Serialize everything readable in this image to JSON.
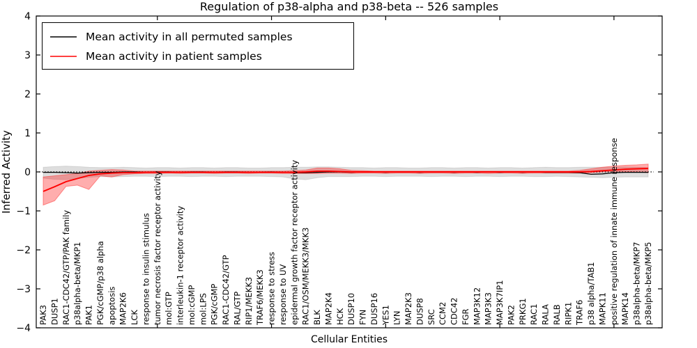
{
  "chart_data": {
    "type": "line",
    "title": "Regulation of p38-alpha and p38-beta -- 526 samples",
    "xlabel": "Cellular Entities",
    "ylabel": "Inferred Activity",
    "ylim": [
      -4,
      4
    ],
    "yticks": [
      4,
      3,
      2,
      1,
      0,
      -1,
      -2,
      -3,
      -4
    ],
    "xtick_positions": [
      10,
      20,
      30,
      40,
      50
    ],
    "grid": false,
    "legend_position": "upper left",
    "zero_reference_line": 0,
    "categories": [
      "PAK3",
      "DUSP1",
      "RAC1-CDC42/GTP/PAK family",
      "p38alpha-beta/MKP1",
      "PAK1",
      "PGK/cGMP/p38 alpha",
      "apoptosis",
      "MAP2K6",
      "LCK",
      "response to insulin stimulus",
      "tumor necrosis factor receptor activity",
      "mol:GTP",
      "interleukin-1 receptor activity",
      "mol:cGMP",
      "mol:LPS",
      "PGK/cGMP",
      "RAC1-CDC42/GTP",
      "RAL/GTP",
      "RIP1/MEKK3",
      "TRAF6/MEKK3",
      "response to stress",
      "response to UV",
      "epidermal growth factor receptor activity",
      "RAC1/OSM/MEKK3/MKK3",
      "BLK",
      "MAP2K4",
      "HCK",
      "DUSP10",
      "FYN",
      "DUSP16",
      "YES1",
      "LYN",
      "MAP2K3",
      "DUSP8",
      "SRC",
      "CCM2",
      "CDC42",
      "FGR",
      "MAP3K12",
      "MAP3K3",
      "MAP3K7IP1",
      "PAK2",
      "PRKG1",
      "RAC1",
      "RALA",
      "RALB",
      "RIPK1",
      "TRAF6",
      "p38 alpha/TAB1",
      "MAPK11",
      "positive regulation of innate immune response",
      "MAPK14",
      "p38alpha-beta/MKP7",
      "p38alpha-beta/MKP5"
    ],
    "series": [
      {
        "name": "Mean activity in all permuted samples",
        "color": "#000000",
        "band_fill": "rgba(0,0,0,0.13)",
        "band_edge": "rgba(0,0,0,0.10)",
        "values": [
          -0.01,
          -0.01,
          -0.02,
          -0.03,
          -0.02,
          -0.01,
          -0.01,
          0,
          0,
          -0.01,
          0,
          0,
          -0.01,
          0,
          0,
          -0.01,
          0,
          0,
          -0.01,
          -0.01,
          0,
          -0.01,
          -0.02,
          -0.02,
          -0.01,
          0,
          0,
          -0.01,
          0,
          0,
          -0.01,
          0,
          0,
          -0.01,
          0,
          0,
          -0.01,
          0,
          -0.01,
          0,
          -0.01,
          0,
          -0.01,
          0,
          -0.01,
          -0.01,
          -0.01,
          -0.02,
          -0.06,
          -0.05,
          -0.02,
          -0.01,
          -0.01,
          -0.01
        ],
        "band_upper": [
          0.12,
          0.14,
          0.15,
          0.14,
          0.12,
          0.11,
          0.11,
          0.12,
          0.11,
          0.1,
          0.11,
          0.11,
          0.1,
          0.11,
          0.11,
          0.1,
          0.11,
          0.11,
          0.1,
          0.1,
          0.11,
          0.11,
          0.12,
          0.12,
          0.13,
          0.13,
          0.12,
          0.11,
          0.11,
          0.1,
          0.11,
          0.11,
          0.1,
          0.1,
          0.11,
          0.11,
          0.1,
          0.11,
          0.11,
          0.1,
          0.11,
          0.11,
          0.1,
          0.11,
          0.12,
          0.11,
          0.11,
          0.12,
          0.12,
          0.12,
          0.12,
          0.13,
          0.12,
          0.11
        ],
        "band_lower": [
          -0.16,
          -0.19,
          -0.2,
          -0.17,
          -0.14,
          -0.12,
          -0.13,
          -0.12,
          -0.11,
          -0.11,
          -0.12,
          -0.11,
          -0.11,
          -0.12,
          -0.11,
          -0.11,
          -0.12,
          -0.11,
          -0.11,
          -0.11,
          -0.12,
          -0.13,
          -0.18,
          -0.2,
          -0.15,
          -0.12,
          -0.12,
          -0.12,
          -0.11,
          -0.11,
          -0.12,
          -0.11,
          -0.11,
          -0.11,
          -0.12,
          -0.11,
          -0.11,
          -0.12,
          -0.11,
          -0.11,
          -0.12,
          -0.11,
          -0.11,
          -0.12,
          -0.12,
          -0.11,
          -0.12,
          -0.13,
          -0.14,
          -0.15,
          -0.14,
          -0.13,
          -0.13,
          -0.13
        ]
      },
      {
        "name": "Mean activity in patient samples",
        "color": "#ff0000",
        "band_fill": "rgba(255,0,0,0.32)",
        "band_edge": "rgba(255,60,60,0.55)",
        "values": [
          -0.5,
          -0.38,
          -0.25,
          -0.17,
          -0.09,
          -0.05,
          -0.03,
          -0.02,
          -0.02,
          -0.01,
          -0.01,
          -0.01,
          -0.01,
          -0.01,
          -0.01,
          -0.01,
          -0.01,
          -0.01,
          -0.01,
          -0.01,
          -0.01,
          -0.01,
          -0.01,
          0.0,
          0.02,
          0.02,
          0.01,
          0.0,
          0.0,
          0.0,
          0.0,
          0.0,
          0.0,
          0.0,
          0.0,
          0.0,
          0.0,
          0.0,
          0.0,
          0.0,
          0.0,
          0.0,
          0.0,
          0.0,
          0.0,
          0.0,
          0.0,
          0.0,
          0.01,
          0.03,
          0.05,
          0.07,
          0.08,
          0.09
        ],
        "band_upper": [
          -0.13,
          -0.1,
          -0.07,
          -0.04,
          0.02,
          0.04,
          0.06,
          0.05,
          0.02,
          0.02,
          0.02,
          0.02,
          0.02,
          0.02,
          0.02,
          0.02,
          0.02,
          0.02,
          0.02,
          0.02,
          0.02,
          0.02,
          0.03,
          0.05,
          0.1,
          0.1,
          0.08,
          0.04,
          0.03,
          0.02,
          0.02,
          0.02,
          0.02,
          0.02,
          0.02,
          0.02,
          0.02,
          0.02,
          0.02,
          0.02,
          0.02,
          0.02,
          0.02,
          0.02,
          0.02,
          0.02,
          0.02,
          0.04,
          0.08,
          0.12,
          0.15,
          0.17,
          0.18,
          0.2
        ],
        "band_lower": [
          -0.85,
          -0.74,
          -0.37,
          -0.34,
          -0.45,
          -0.1,
          -0.13,
          -0.07,
          -0.05,
          -0.04,
          -0.04,
          -0.03,
          -0.04,
          -0.03,
          -0.03,
          -0.04,
          -0.03,
          -0.03,
          -0.04,
          -0.03,
          -0.03,
          -0.04,
          -0.04,
          -0.04,
          -0.04,
          -0.03,
          -0.03,
          -0.04,
          -0.03,
          -0.03,
          -0.04,
          -0.03,
          -0.03,
          -0.04,
          -0.03,
          -0.03,
          -0.04,
          -0.03,
          -0.03,
          -0.04,
          -0.03,
          -0.03,
          -0.04,
          -0.03,
          -0.03,
          -0.03,
          -0.03,
          -0.03,
          -0.02,
          0.0,
          0.01,
          0.01,
          0.0,
          -0.02
        ]
      }
    ]
  }
}
